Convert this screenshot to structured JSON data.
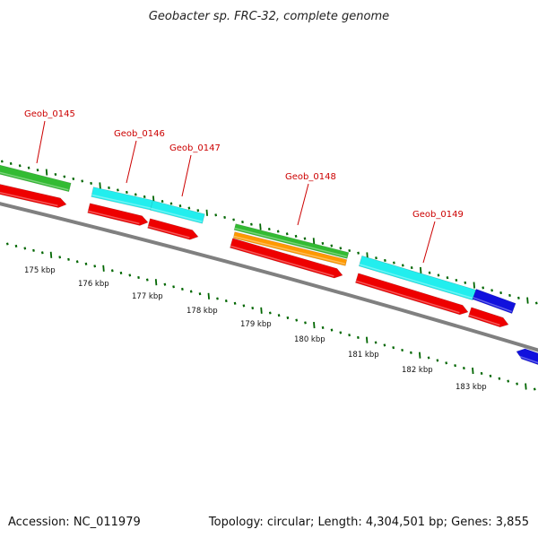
{
  "title": "Geobacter sp. FRC-32, complete genome",
  "footer": {
    "accession": "Accession: NC_011979",
    "summary": "Topology: circular; Length: 4,304,501 bp; Genes: 3,855"
  },
  "colors": {
    "cds": "#ee0000",
    "green_feature": "#33bb33",
    "cyan_feature": "#22eeee",
    "orange_feature": "#ff9900",
    "blue_feature": "#1111dd",
    "backbone": "#808080",
    "tick": "#006600",
    "label": "#cc0000"
  },
  "gene_labels": [
    {
      "id": "geob-0145",
      "text": "Geob_0145"
    },
    {
      "id": "geob-0146",
      "text": "Geob_0146"
    },
    {
      "id": "geob-0147",
      "text": "Geob_0147"
    },
    {
      "id": "geob-0148",
      "text": "Geob_0148"
    },
    {
      "id": "geob-0149",
      "text": "Geob_0149"
    }
  ],
  "scale_labels": [
    "175 kbp",
    "176 kbp",
    "177 kbp",
    "178 kbp",
    "179 kbp",
    "180 kbp",
    "181 kbp",
    "182 kbp",
    "183 kbp"
  ]
}
